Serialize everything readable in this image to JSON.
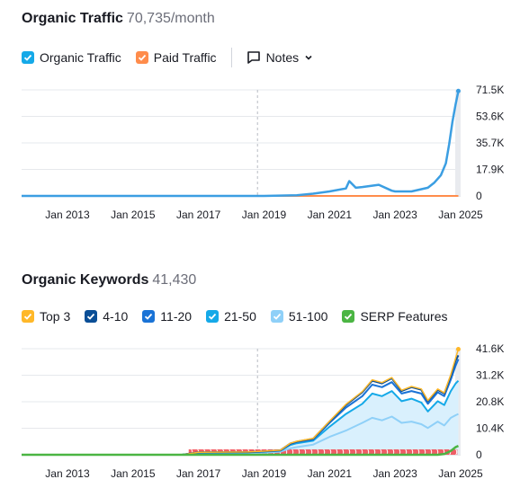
{
  "traffic": {
    "title": "Organic Traffic",
    "metric": "70,735/month",
    "legend": [
      {
        "label": "Organic Traffic",
        "color": "#15a9e8",
        "name": "organic-traffic-checkbox"
      },
      {
        "label": "Paid Traffic",
        "color": "#ff8c4b",
        "name": "paid-traffic-checkbox"
      }
    ],
    "notes_label": "Notes"
  },
  "keywords": {
    "title": "Organic Keywords",
    "metric": "41,430",
    "legend": [
      {
        "label": "Top 3",
        "color": "#ffb829",
        "name": "top3-checkbox"
      },
      {
        "label": "4-10",
        "color": "#0a4e96",
        "name": "pos-4-10-checkbox"
      },
      {
        "label": "11-20",
        "color": "#1a73d6",
        "name": "pos-11-20-checkbox"
      },
      {
        "label": "21-50",
        "color": "#15a9e8",
        "name": "pos-21-50-checkbox"
      },
      {
        "label": "51-100",
        "color": "#8fd0f8",
        "name": "pos-51-100-checkbox"
      },
      {
        "label": "SERP Features",
        "color": "#4bb543",
        "name": "serp-features-checkbox"
      }
    ]
  },
  "chart_data": [
    {
      "type": "line",
      "title": "Organic Traffic",
      "x_ticks": [
        "Jan 2013",
        "Jan 2015",
        "Jan 2017",
        "Jan 2019",
        "Jan 2021",
        "Jan 2023",
        "Jan 2025"
      ],
      "y_ticks": [
        "71.5K",
        "53.6K",
        "35.7K",
        "17.9K",
        "0"
      ],
      "ylim": [
        0,
        71500
      ],
      "xlim": [
        2011.6,
        2025.0
      ],
      "series": [
        {
          "name": "Organic Traffic",
          "color": "#3b9ee2",
          "x": [
            2011.6,
            2017.0,
            2019.0,
            2020.0,
            2020.5,
            2021.0,
            2021.5,
            2021.6,
            2021.8,
            2022.0,
            2022.5,
            2022.9,
            2023.0,
            2023.5,
            2024.0,
            2024.2,
            2024.4,
            2024.55,
            2024.65,
            2024.75,
            2024.85,
            2024.93
          ],
          "y": [
            0,
            0,
            0,
            500,
            1500,
            3000,
            5000,
            10000,
            5500,
            6000,
            7500,
            3500,
            3000,
            3000,
            5500,
            9000,
            14000,
            22000,
            35000,
            50000,
            62000,
            70735
          ]
        },
        {
          "name": "Paid Traffic",
          "color": "#ff8c4b",
          "x": [
            2011.6,
            2024.93
          ],
          "y": [
            0,
            0
          ]
        }
      ],
      "notes_marker_x": 2018.8,
      "grid": true
    },
    {
      "type": "area",
      "title": "Organic Keywords",
      "x_ticks": [
        "Jan 2013",
        "Jan 2015",
        "Jan 2017",
        "Jan 2019",
        "Jan 2021",
        "Jan 2023",
        "Jan 2025"
      ],
      "y_ticks": [
        "41.6K",
        "31.2K",
        "20.8K",
        "10.4K",
        "0"
      ],
      "ylim": [
        0,
        41600
      ],
      "xlim": [
        2011.6,
        2025.0
      ],
      "x": [
        2011.6,
        2016.5,
        2017.0,
        2018.5,
        2019.0,
        2019.5,
        2019.8,
        2020.0,
        2020.5,
        2021.0,
        2021.5,
        2022.0,
        2022.3,
        2022.6,
        2022.9,
        2023.2,
        2023.5,
        2023.8,
        2024.0,
        2024.3,
        2024.5,
        2024.7,
        2024.85,
        2024.93
      ],
      "series": [
        {
          "name": "51-100",
          "color": "#8fd0f8",
          "values": [
            0,
            0,
            500,
            600,
            800,
            1200,
            2500,
            3000,
            4000,
            7000,
            9500,
            12500,
            14500,
            13500,
            15000,
            12500,
            13000,
            12000,
            10500,
            13000,
            11500,
            14500,
            15500,
            16000
          ]
        },
        {
          "name": "21-50",
          "color": "#15a9e8",
          "values": [
            0,
            0,
            800,
            900,
            1200,
            1600,
            3800,
            4500,
            5500,
            11000,
            16000,
            20000,
            24000,
            23000,
            25000,
            21000,
            22000,
            20500,
            17000,
            21000,
            19500,
            25000,
            28000,
            29000
          ]
        },
        {
          "name": "11-20",
          "color": "#1a73d6",
          "values": [
            0,
            0,
            900,
            1000,
            1300,
            1700,
            4200,
            5000,
            6000,
            12500,
            18500,
            23000,
            27500,
            26500,
            28500,
            24000,
            25000,
            24000,
            20000,
            24500,
            23000,
            29500,
            35000,
            37500
          ]
        },
        {
          "name": "4-10",
          "color": "#0a4e96",
          "values": [
            0,
            0,
            950,
            1050,
            1350,
            1750,
            4400,
            5200,
            6300,
            13000,
            19500,
            24500,
            29000,
            28000,
            30000,
            25000,
            26500,
            25500,
            21000,
            25500,
            24000,
            31000,
            37000,
            39000
          ]
        },
        {
          "name": "Top 3",
          "color": "#ffb829",
          "values": [
            0,
            0,
            1000,
            1100,
            1400,
            1800,
            4500,
            5300,
            6400,
            13200,
            19800,
            24800,
            29400,
            28300,
            30300,
            25300,
            26800,
            25800,
            21300,
            25800,
            24300,
            31500,
            38000,
            41430
          ]
        },
        {
          "name": "SERP Features",
          "color": "#4bb543",
          "values": [
            0,
            0,
            0,
            0,
            0,
            0,
            0,
            0,
            0,
            0,
            0,
            0,
            0,
            0,
            0,
            0,
            0,
            0,
            0,
            0,
            300,
            1500,
            3000,
            3500
          ]
        }
      ],
      "notes_marker_x": 2018.8,
      "grid": true
    }
  ]
}
